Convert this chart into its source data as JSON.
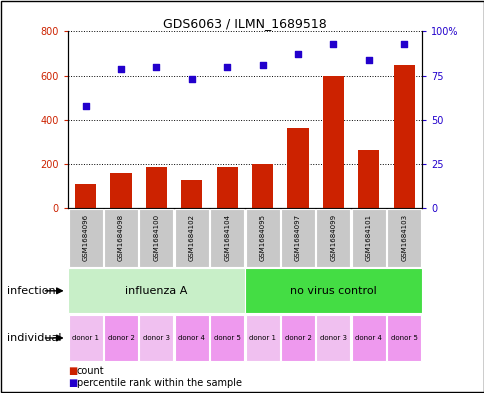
{
  "title": "GDS6063 / ILMN_1689518",
  "samples": [
    "GSM1684096",
    "GSM1684098",
    "GSM1684100",
    "GSM1684102",
    "GSM1684104",
    "GSM1684095",
    "GSM1684097",
    "GSM1684099",
    "GSM1684101",
    "GSM1684103"
  ],
  "counts": [
    110,
    160,
    185,
    130,
    185,
    200,
    365,
    600,
    265,
    650
  ],
  "percentiles": [
    58,
    79,
    80,
    73,
    80,
    81,
    87,
    93,
    84,
    93
  ],
  "infection_groups": [
    {
      "label": "influenza A",
      "start": 0,
      "end": 5,
      "color": "#C8EFC8"
    },
    {
      "label": "no virus control",
      "start": 5,
      "end": 10,
      "color": "#44DD44"
    }
  ],
  "individual_labels": [
    "donor 1",
    "donor 2",
    "donor 3",
    "donor 4",
    "donor 5",
    "donor 1",
    "donor 2",
    "donor 3",
    "donor 4",
    "donor 5"
  ],
  "individual_colors": [
    "#F0C0F0",
    "#EE99EE",
    "#F0C0F0",
    "#EE99EE",
    "#EE99EE",
    "#F0C0F0",
    "#EE99EE",
    "#F0C0F0",
    "#EE99EE",
    "#EE99EE"
  ],
  "bar_color": "#CC2200",
  "dot_color": "#2200CC",
  "ylim_left": [
    0,
    800
  ],
  "ylim_right": [
    0,
    100
  ],
  "yticks_left": [
    0,
    200,
    400,
    600,
    800
  ],
  "yticks_right": [
    0,
    25,
    50,
    75,
    100
  ],
  "grid_color": "#000000",
  "bg_color": "#FFFFFF",
  "tick_label_color_left": "#CC2200",
  "tick_label_color_right": "#2200CC",
  "legend_count_label": "count",
  "legend_percentile_label": "percentile rank within the sample",
  "infection_row_label": "infection",
  "individual_row_label": "individual",
  "sample_bg_color": "#C8C8C8"
}
